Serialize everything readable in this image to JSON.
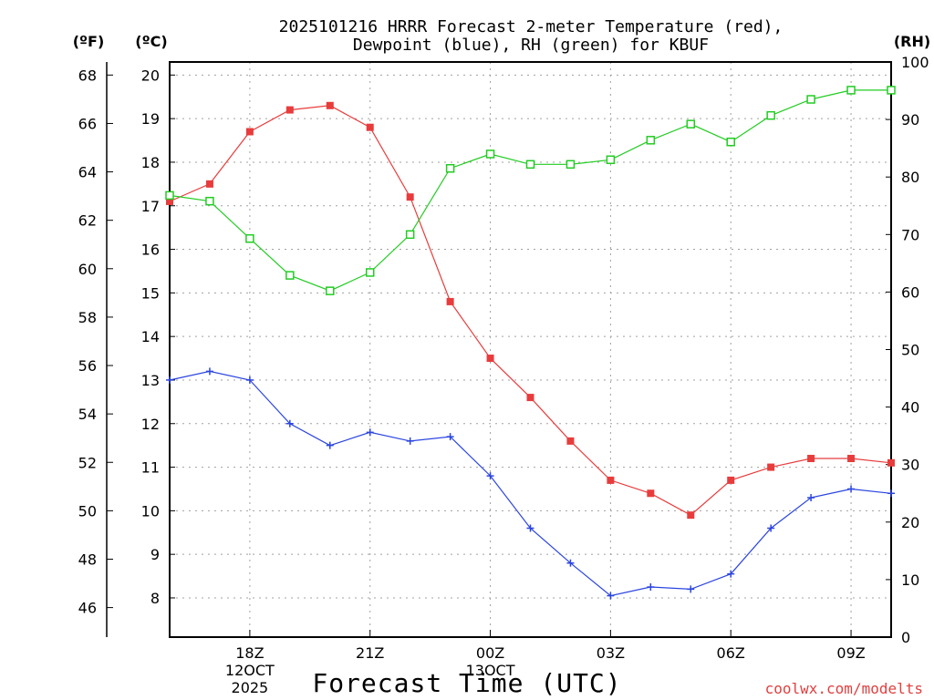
{
  "chart_data": {
    "type": "line",
    "title_line1": "2025101216 HRRR Forecast 2-meter Temperature (red),",
    "title_line2": "Dewpoint (blue), RH (green) for KBUF",
    "xlabel": "Forecast Time (UTC)",
    "credit": "coolwx.com/modelts",
    "units": {
      "f": "(ºF)",
      "c": "(ºC)",
      "rh": "(RH)"
    },
    "x_range": [
      0,
      18
    ],
    "x_ticks": [
      {
        "x": 2,
        "lines": [
          "18Z",
          "12OCT",
          "2025"
        ]
      },
      {
        "x": 5,
        "lines": [
          "21Z"
        ]
      },
      {
        "x": 8,
        "lines": [
          "00Z",
          "13OCT"
        ]
      },
      {
        "x": 11,
        "lines": [
          "03Z"
        ]
      },
      {
        "x": 14,
        "lines": [
          "06Z"
        ]
      },
      {
        "x": 17,
        "lines": [
          "09Z"
        ]
      }
    ],
    "celsius_axis": {
      "min": 7.1,
      "max": 20.3,
      "ticks": [
        8,
        9,
        10,
        11,
        12,
        13,
        14,
        15,
        16,
        17,
        18,
        19,
        20
      ]
    },
    "fahrenheit_ticks": [
      46,
      48,
      50,
      52,
      54,
      56,
      58,
      60,
      62,
      64,
      66,
      68
    ],
    "rh_axis": {
      "min": 0,
      "max": 100,
      "ticks": [
        0,
        10,
        20,
        30,
        40,
        50,
        60,
        70,
        80,
        90,
        100
      ]
    },
    "series": [
      {
        "name": "Temperature",
        "axis": "celsius",
        "color": "#e83c3c",
        "marker": "filled-square",
        "x": [
          0,
          1,
          2,
          3,
          4,
          5,
          6,
          7,
          8,
          9,
          10,
          11,
          12,
          13,
          14,
          15,
          16,
          17,
          18
        ],
        "values": [
          17.1,
          17.5,
          18.7,
          19.2,
          19.3,
          18.8,
          17.2,
          14.8,
          13.5,
          12.6,
          11.6,
          10.7,
          10.4,
          9.9,
          10.7,
          11.0,
          11.2,
          11.2,
          11.1
        ]
      },
      {
        "name": "Dewpoint",
        "axis": "celsius",
        "color": "#2b45e0",
        "marker": "plus",
        "x": [
          0,
          1,
          2,
          3,
          4,
          5,
          6,
          7,
          8,
          9,
          10,
          11,
          12,
          13,
          14,
          15,
          16,
          17,
          18
        ],
        "values": [
          13.0,
          13.2,
          13.0,
          12.0,
          11.5,
          11.8,
          11.6,
          11.7,
          10.8,
          9.6,
          8.8,
          8.05,
          8.25,
          8.2,
          8.55,
          9.6,
          10.3,
          10.5,
          10.4
        ]
      },
      {
        "name": "RH",
        "axis": "rh",
        "color": "#22cc22",
        "marker": "open-square",
        "x": [
          0,
          1,
          2,
          3,
          4,
          5,
          6,
          7,
          8,
          9,
          10,
          11,
          12,
          13,
          14,
          15,
          16,
          17,
          18
        ],
        "values": [
          76.8,
          75.8,
          69.3,
          62.9,
          60.2,
          63.4,
          70.0,
          81.5,
          84.0,
          82.2,
          82.2,
          83.0,
          86.4,
          89.2,
          86.1,
          90.7,
          93.5,
          95.1,
          95.1
        ]
      }
    ]
  }
}
